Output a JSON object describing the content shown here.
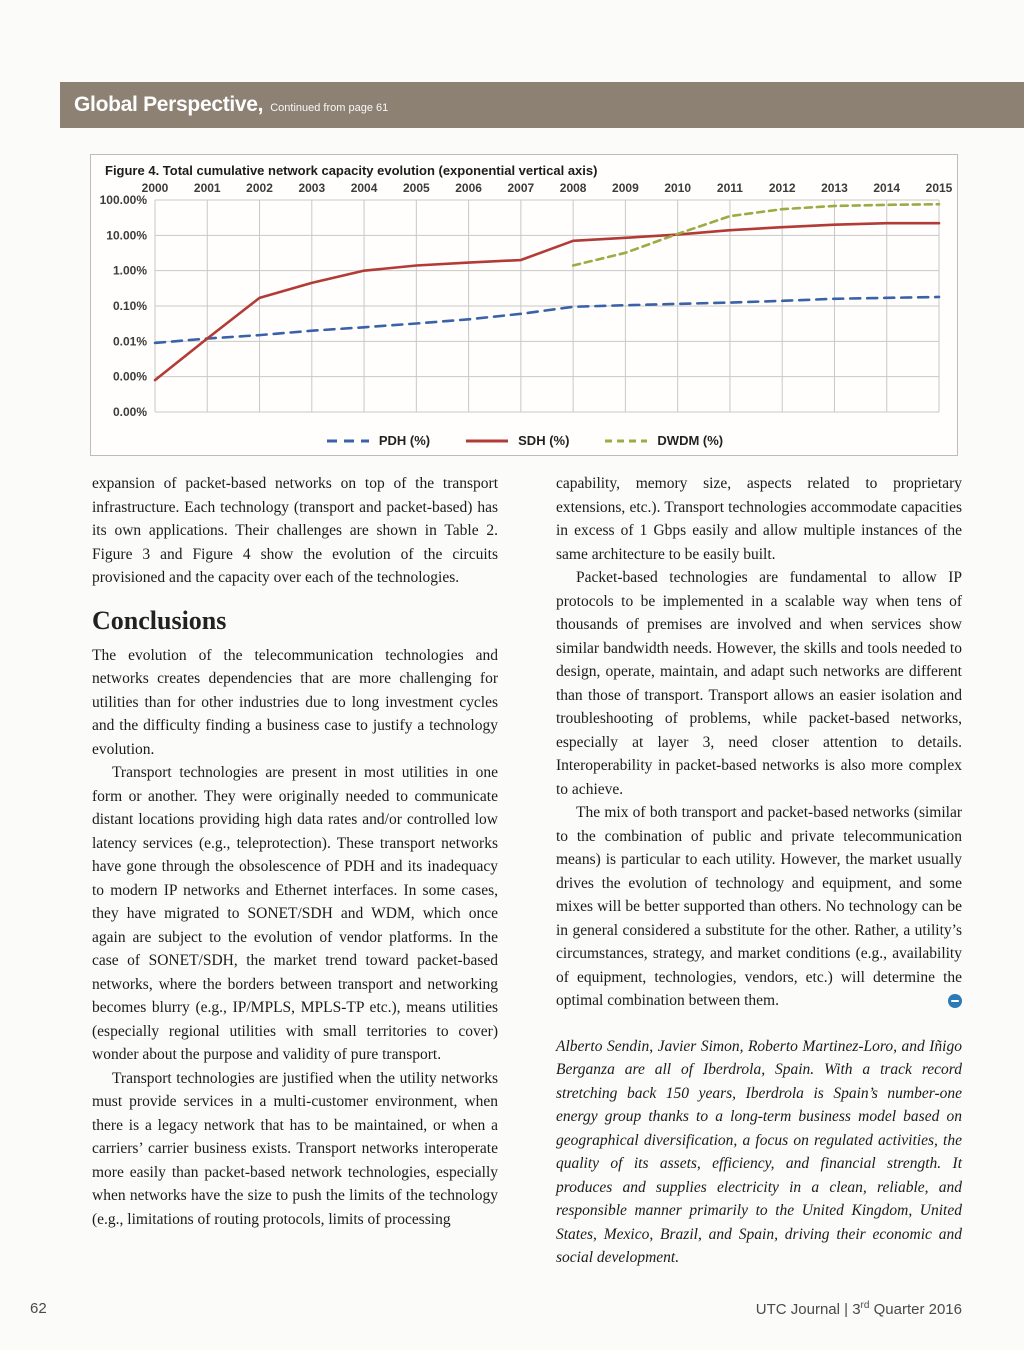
{
  "header": {
    "title": "Global Perspective,",
    "subtitle": "Continued from page 61"
  },
  "chart_data": {
    "type": "line",
    "title": "Figure 4. Total cumulative network capacity evolution (exponential vertical axis)",
    "x": [
      "2000",
      "2001",
      "2002",
      "2003",
      "2004",
      "2005",
      "2006",
      "2007",
      "2008",
      "2009",
      "2010",
      "2011",
      "2012",
      "2013",
      "2014",
      "2015"
    ],
    "y_scale": "log",
    "y_range": [
      0.0001,
      100
    ],
    "y_tick_labels": [
      "100.00%",
      "10.00%",
      "1.00%",
      "0.10%",
      "0.01%",
      "0.00%",
      "0.00%"
    ],
    "y_tick_values": [
      100,
      10,
      1,
      0.1,
      0.01,
      0.001,
      0.0001
    ],
    "grid": true,
    "legend_position": "bottom",
    "series": [
      {
        "name": "PDH (%)",
        "color": "#3a62a8",
        "dash": "10,7",
        "values": [
          0.009,
          0.012,
          0.015,
          0.02,
          0.025,
          0.032,
          0.042,
          0.06,
          0.095,
          0.105,
          0.115,
          0.125,
          0.14,
          0.16,
          0.17,
          0.18
        ]
      },
      {
        "name": "SDH (%)",
        "color": "#b23b36",
        "dash": null,
        "values": [
          0.0008,
          0.012,
          0.17,
          0.45,
          1.0,
          1.4,
          1.7,
          2.0,
          7.0,
          8.5,
          10.5,
          14,
          17,
          20,
          22,
          22
        ]
      },
      {
        "name": "DWDM (%)",
        "color": "#9cab44",
        "dash": "7,5",
        "values": [
          null,
          null,
          null,
          null,
          null,
          null,
          null,
          null,
          1.4,
          3.2,
          11,
          35,
          55,
          68,
          73,
          76
        ]
      }
    ]
  },
  "article": {
    "left": [
      "expansion of packet-based networks on top of the transport infrastructure. Each technology (transport and packet-based) has its own applications. Their challenges are shown in Table 2. Figure 3 and Figure 4 show the evolution of the circuits provisioned and the capacity over each of the technologies.",
      "The evolution of the telecommunication technologies and networks creates dependencies that are more challenging for utilities than for other industries due to long investment cycles and the difficulty finding a business case to justify a technology evolution.",
      "Transport technologies are present in most utilities in one form or another. They were originally needed to communicate distant locations providing high data rates and/or controlled low latency services (e.g., teleprotection). These transport networks have gone through the obsolescence of PDH and its inadequacy to modern IP networks and Ethernet interfaces. In some cases, they have migrated to SONET/SDH and WDM, which once again are subject to the evolution of vendor platforms. In the case of SONET/SDH, the market trend toward packet-based networks, where the borders between transport and networking becomes blurry (e.g., IP/MPLS, MPLS-TP etc.), means utilities (especially regional utilities with small territories to cover) wonder about the purpose and validity of pure transport.",
      "Transport technologies are justified when the utility networks must provide services in a multi-customer environment, when there is a legacy network that has to be maintained, or when a carriers’ carrier business exists. Transport networks interoperate more easily than packet-based network technologies, especially when networks have the size to push the limits of the technology (e.g., limitations of routing protocols, limits of processing"
    ],
    "conclusions_heading": "Conclusions",
    "right": [
      "capability, memory size, aspects related to proprietary extensions, etc.). Transport technologies accommodate capacities in excess of 1 Gbps easily and allow multiple instances of the same architecture to be easily built.",
      "Packet-based technologies are fundamental to allow IP protocols to be implemented in a scalable way when tens of thousands of premises are involved and when services show similar bandwidth needs. However, the skills and tools needed to design, operate, maintain, and adapt such networks are different than those of transport. Transport allows an easier isolation and troubleshooting of problems, while packet-based networks, especially at layer 3, need closer attention to details. Interoperability in packet-based networks is also more complex to achieve.",
      "The mix of both transport and packet-based networks (similar to the combination of public and private telecommunication means) is particular to each utility. However, the market usually drives the evolution of technology and equipment, and some mixes will be better supported than others. No technology can be in general considered a substitute for the other. Rather, a utility’s circumstances, strategy, and market conditions (e.g., availability of equipment, technologies, vendors, etc.) will determine the optimal combination between them."
    ],
    "bio": "Alberto Sendin, Javier Simon, Roberto Martinez-Loro, and Iñigo Berganza are all of Iberdrola, Spain. With a track record stretching back 150 years, Iberdrola is Spain’s number-one energy group thanks to a long-term business model based on geographical diversification, a focus on regulated activities, the quality of its assets, efficiency, and financial strength. It produces and supplies electricity in a clean, reliable, and responsible manner primarily to the United Kingdom, United States, Mexico, Brazil, and Spain, driving their economic and social development."
  },
  "footer": {
    "page_number": "62",
    "journal_prefix": "UTC Journal | 3",
    "ordinal": "rd",
    "quarter": " Quarter 2016"
  }
}
